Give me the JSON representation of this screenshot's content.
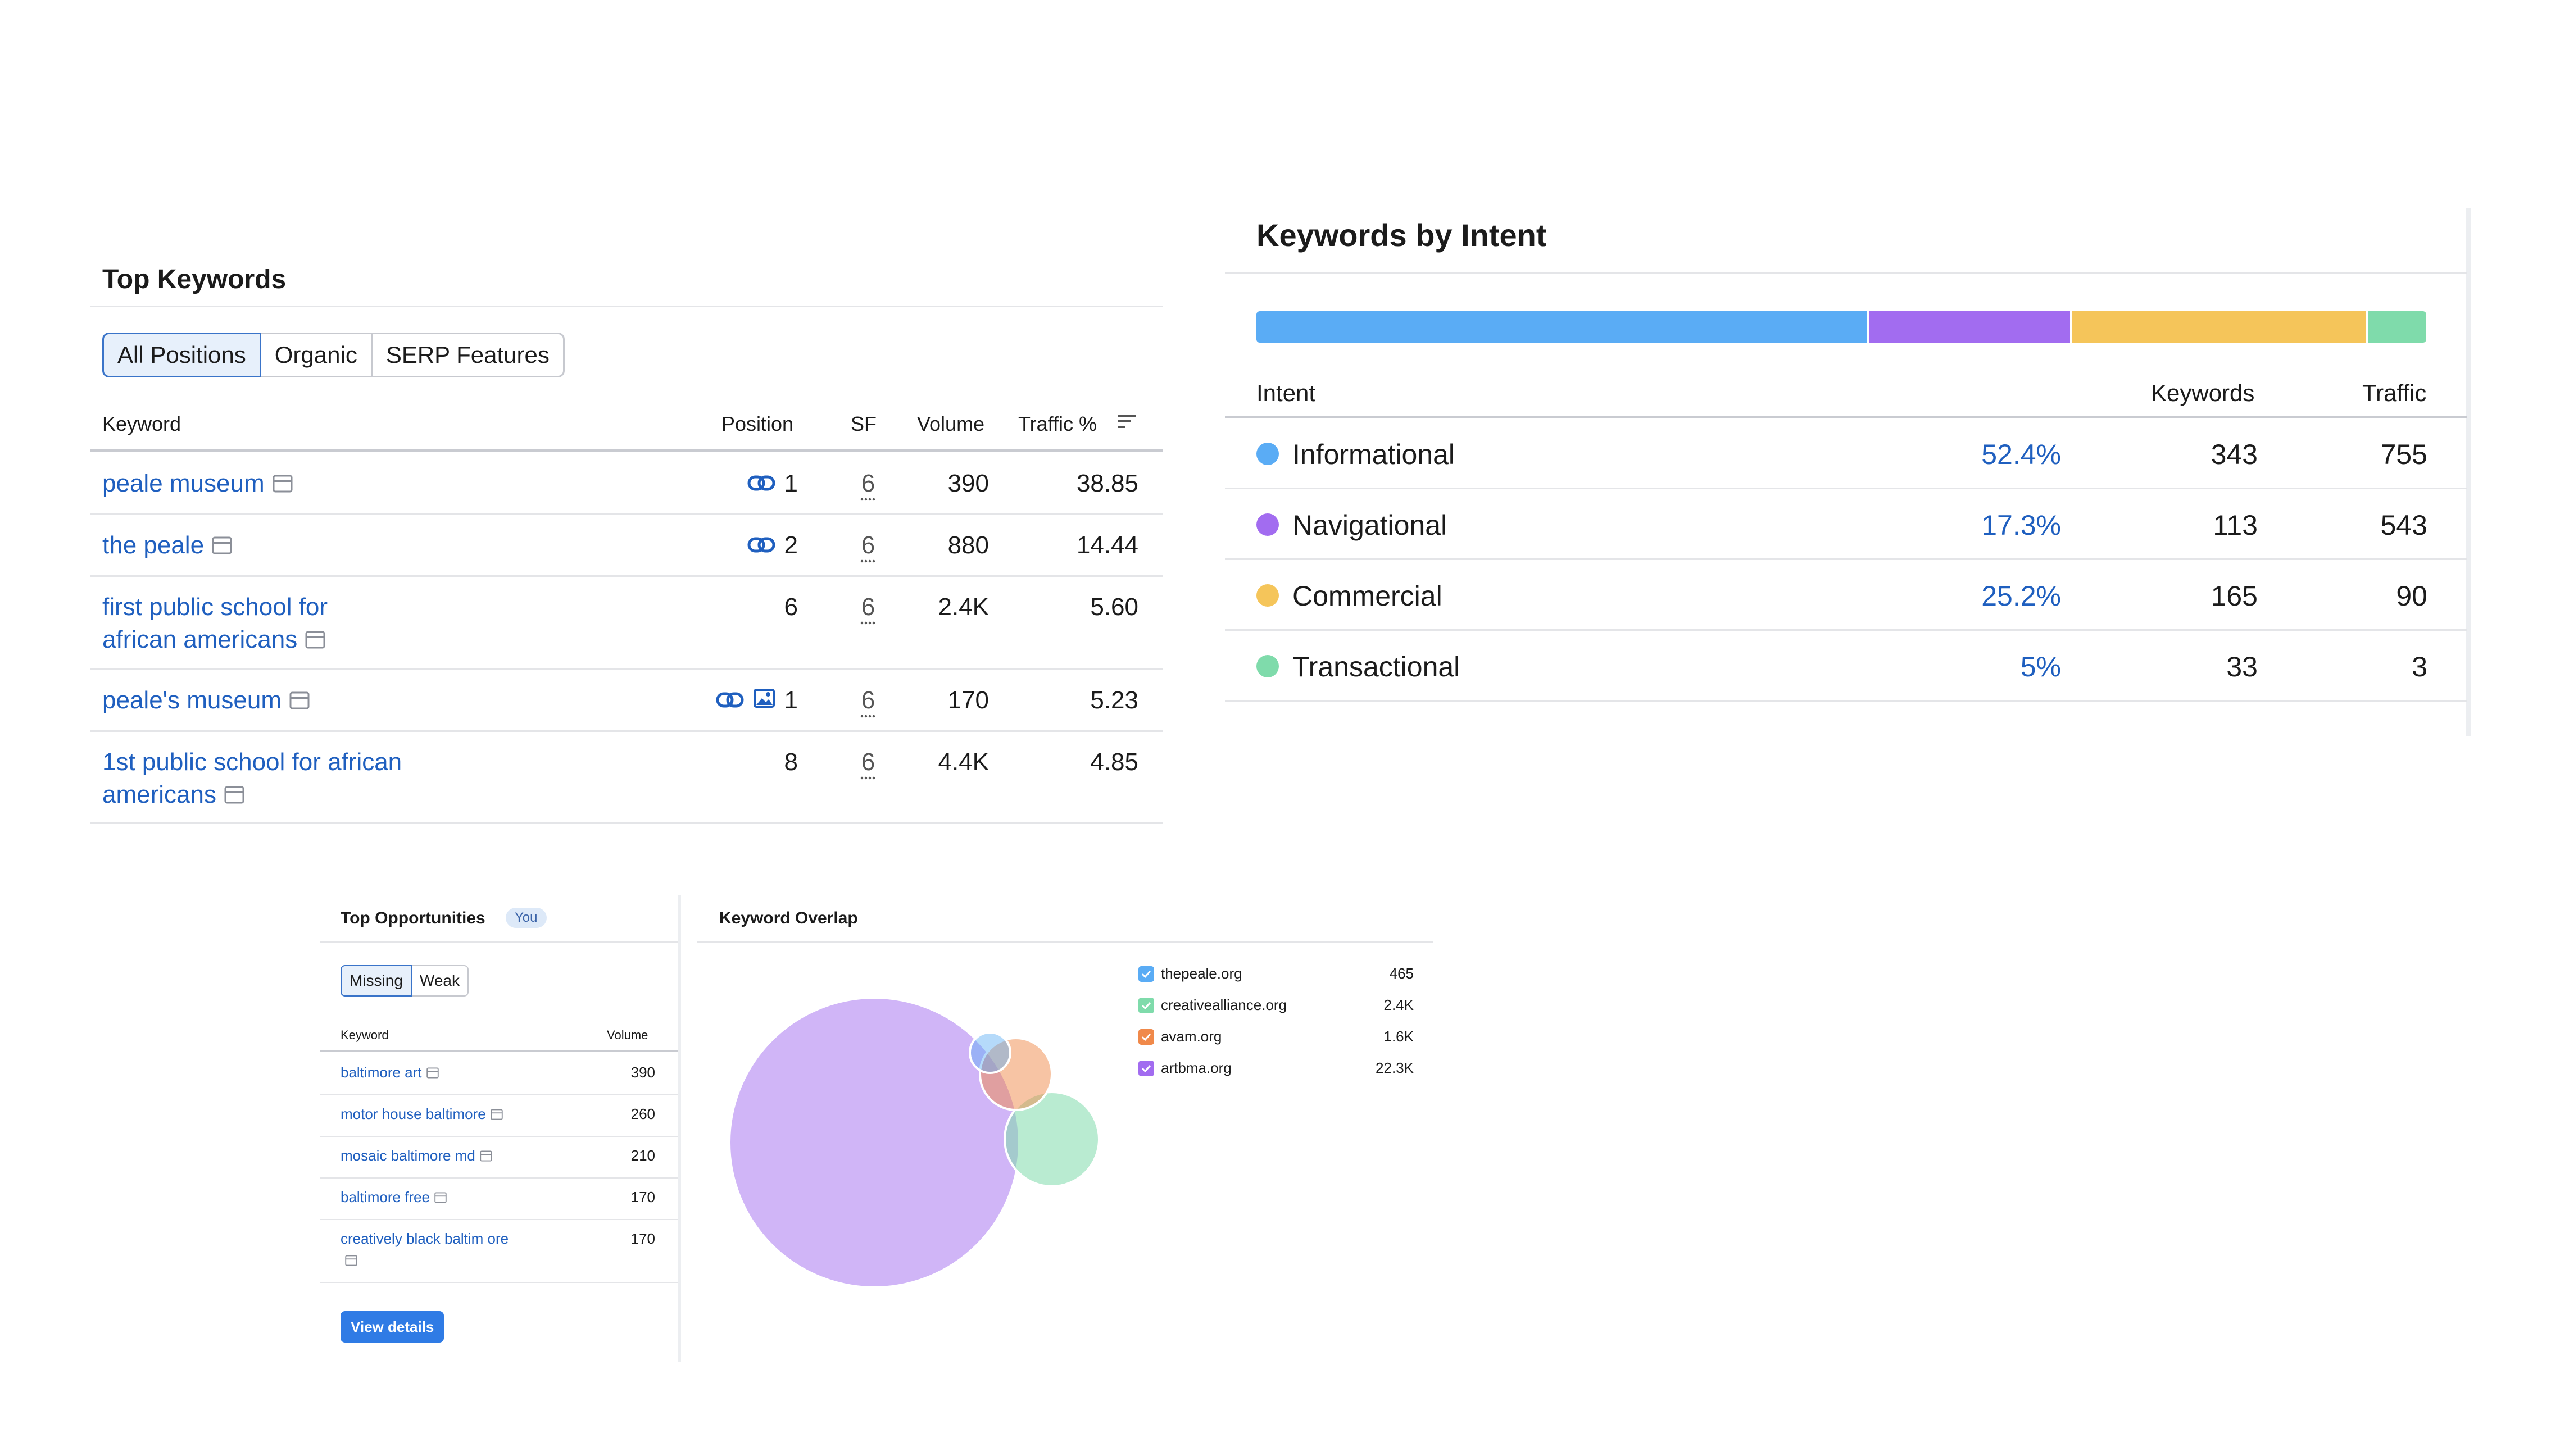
{
  "top_keywords": {
    "title": "Top Keywords",
    "tabs": [
      "All Positions",
      "Organic",
      "SERP Features"
    ],
    "columns": {
      "keyword": "Keyword",
      "position": "Position",
      "sf": "SF",
      "volume": "Volume",
      "traffic": "Traffic %"
    },
    "rows": [
      {
        "keyword": "peale museum",
        "position": "1",
        "features": [
          "link-icon"
        ],
        "sf": "6",
        "volume": "390",
        "traffic": "38.85"
      },
      {
        "keyword": "the peale",
        "position": "2",
        "features": [
          "link-icon"
        ],
        "sf": "6",
        "volume": "880",
        "traffic": "14.44"
      },
      {
        "keyword": "first public school for african americans",
        "position": "6",
        "features": [],
        "sf": "6",
        "volume": "2.4K",
        "traffic": "5.60"
      },
      {
        "keyword": "peale's museum",
        "position": "1",
        "features": [
          "link-icon",
          "image-icon"
        ],
        "sf": "6",
        "volume": "170",
        "traffic": "5.23"
      },
      {
        "keyword": "1st public school for african americans",
        "position": "8",
        "features": [],
        "sf": "6",
        "volume": "4.4K",
        "traffic": "4.85"
      }
    ]
  },
  "keywords_by_intent": {
    "title": "Keywords by Intent",
    "columns": {
      "intent": "Intent",
      "keywords": "Keywords",
      "traffic": "Traffic"
    },
    "rows": [
      {
        "intent": "Informational",
        "share": "52.4%",
        "keywords": "343",
        "traffic": "755",
        "color": "#5aacf5"
      },
      {
        "intent": "Navigational",
        "share": "17.3%",
        "keywords": "113",
        "traffic": "543",
        "color": "#a26cf0"
      },
      {
        "intent": "Commercial",
        "share": "25.2%",
        "keywords": "165",
        "traffic": "90",
        "color": "#f5c55a"
      },
      {
        "intent": "Transactional",
        "share": "5%",
        "keywords": "33",
        "traffic": "3",
        "color": "#7fdbab"
      }
    ]
  },
  "top_opportunities": {
    "title": "Top Opportunities",
    "badge": "You",
    "tabs": [
      "Missing",
      "Weak"
    ],
    "columns": {
      "keyword": "Keyword",
      "volume": "Volume"
    },
    "rows": [
      {
        "keyword": "baltimore art",
        "volume": "390"
      },
      {
        "keyword": "motor house baltimore",
        "volume": "260"
      },
      {
        "keyword": "mosaic baltimore md",
        "volume": "210"
      },
      {
        "keyword": "baltimore free",
        "volume": "170"
      },
      {
        "keyword": "creatively black baltim ore",
        "volume": "170"
      }
    ],
    "button": "View details"
  },
  "keyword_overlap": {
    "title": "Keyword Overlap",
    "domains": [
      {
        "domain": "thepeale.org",
        "keywords": "465",
        "color": "#5aacf5"
      },
      {
        "domain": "creativealliance.org",
        "keywords": "2.4K",
        "color": "#7fdbab"
      },
      {
        "domain": "avam.org",
        "keywords": "1.6K",
        "color": "#f0894a"
      },
      {
        "domain": "artbma.org",
        "keywords": "22.3K",
        "color": "#a26cf0"
      }
    ]
  }
}
